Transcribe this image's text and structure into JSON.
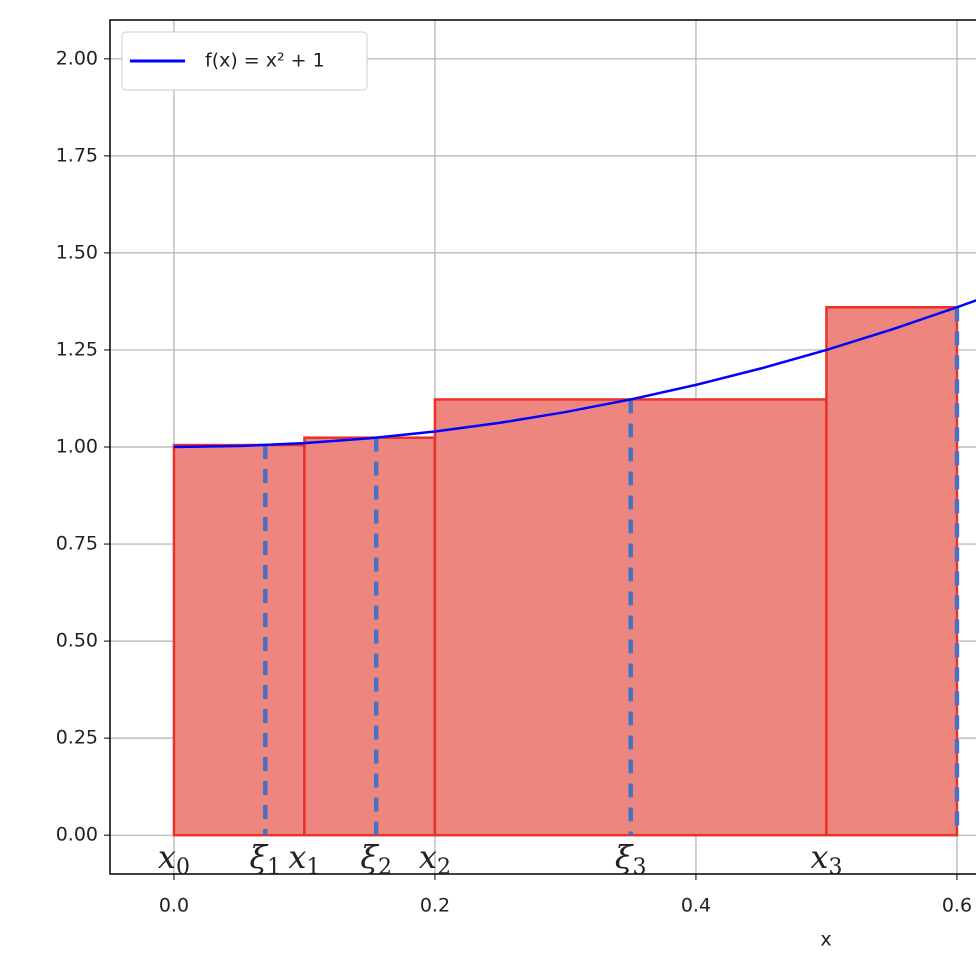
{
  "chart_data": {
    "type": "riemann",
    "xlabel": "x",
    "xlim": [
      -0.049,
      0.6146
    ],
    "ylim": [
      -0.1,
      2.1
    ],
    "xticks": [
      {
        "value": 0,
        "label": "0.0"
      },
      0.2,
      0.4,
      0.6
    ],
    "yticks": [
      {
        "value": 0,
        "label": "0.00"
      },
      0.25,
      {
        "value": 0.5,
        "label": "0.50"
      },
      0.75,
      {
        "value": 1,
        "label": "1.00"
      },
      1.25,
      {
        "value": 1.5,
        "label": "1.50"
      },
      1.75,
      {
        "value": 2,
        "label": "2.00"
      }
    ],
    "grid": true,
    "legend": "upper left",
    "series": [
      {
        "name": "f(x) = x² + 1",
        "color": "#0000ff",
        "x": [
          0,
          0.05,
          0.1,
          0.15,
          0.2,
          0.25,
          0.3,
          0.35,
          0.4,
          0.45,
          0.5,
          0.55,
          0.6,
          0.615
        ],
        "values": [
          1,
          1.0025,
          1.01,
          1.0225,
          1.04,
          1.0625,
          1.09,
          1.1225,
          1.16,
          1.2025,
          1.25,
          1.3025,
          1.36,
          1.378
        ]
      }
    ],
    "rectangles": {
      "edges": [
        0,
        0.1,
        0.2,
        0.5,
        0.6
      ],
      "heights": [
        1.005,
        1.024,
        1.1225,
        1.36
      ],
      "tags": [
        0.07,
        0.155,
        0.35,
        0.6
      ],
      "fill": "#ee8680",
      "edge_color": "#e8322a",
      "tag_color": "#4a70c4"
    },
    "edge_labels": [
      {
        "text": "x",
        "sub": "0"
      },
      {
        "text": "x",
        "sub": "1"
      },
      {
        "text": "x",
        "sub": "2"
      },
      {
        "text": "x",
        "sub": "3"
      }
    ],
    "tag_labels": [
      {
        "text": "ξ",
        "sub": "1"
      },
      {
        "text": "ξ",
        "sub": "2"
      },
      {
        "text": "ξ",
        "sub": "3"
      }
    ]
  }
}
